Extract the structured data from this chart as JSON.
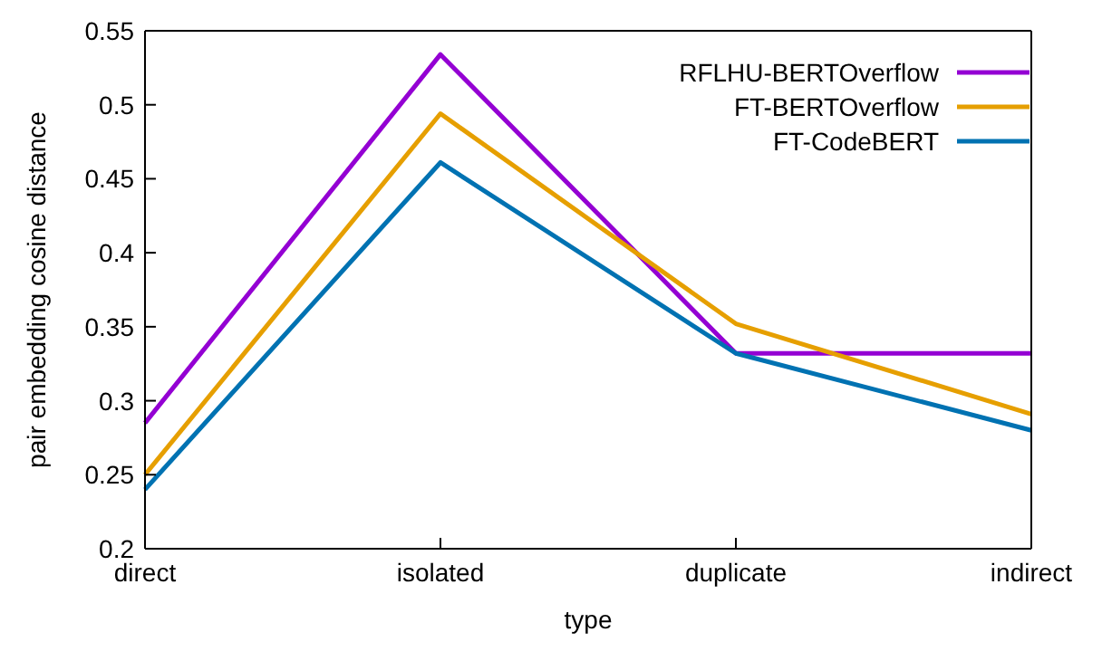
{
  "chart_data": {
    "type": "line",
    "xlabel": "type",
    "ylabel": "pair embedding cosine distance",
    "categories": [
      "direct",
      "isolated",
      "duplicate",
      "indirect"
    ],
    "series": [
      {
        "name": "RFLHU-BERTOverflow",
        "color": "#9400d3",
        "values": [
          0.285,
          0.534,
          0.332,
          0.332
        ]
      },
      {
        "name": "FT-BERTOverflow",
        "color": "#e69f00",
        "values": [
          0.25,
          0.494,
          0.352,
          0.291
        ]
      },
      {
        "name": "FT-CodeBERT",
        "color": "#0072b2",
        "values": [
          0.24,
          0.461,
          0.332,
          0.28
        ]
      }
    ],
    "ylim": [
      0.2,
      0.55
    ],
    "yticks": [
      0.2,
      0.25,
      0.3,
      0.35,
      0.4,
      0.45,
      0.5,
      0.55
    ],
    "grid": false,
    "legend": "top right",
    "marker": "none",
    "line_style": "solid"
  }
}
